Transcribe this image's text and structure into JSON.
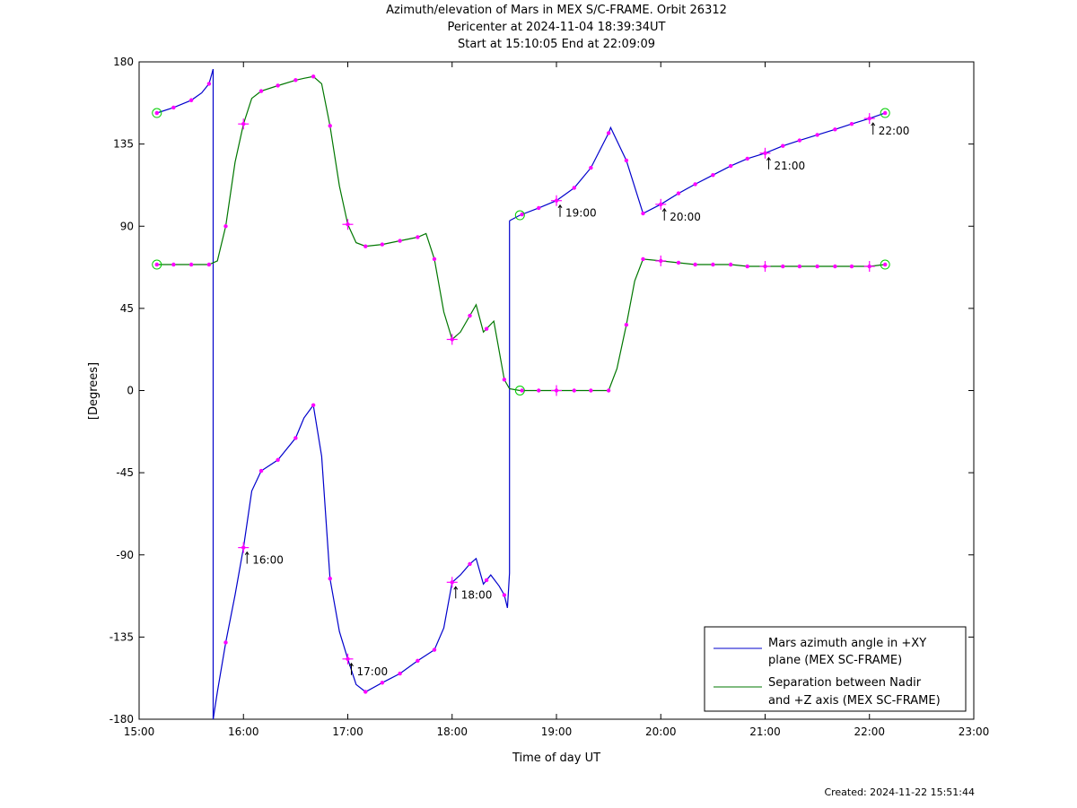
{
  "title": {
    "line1": "Azimuth/elevation of Mars in MEX S/C-FRAME.  Orbit 26312",
    "line2": "Pericenter at 2024-11-04 18:39:34UT",
    "line3": "Start at 15:10:05 End at 22:09:09"
  },
  "created": "Created: 2024-11-22 15:51:44",
  "colors": {
    "azimuth": "#0000cc",
    "separation": "#007700",
    "markers": "#ff00ff",
    "endpoints": "#00cc00"
  },
  "chart_data": {
    "type": "line",
    "xlabel": "Time of day UT",
    "ylabel": "[Degrees]",
    "xlim": [
      15.0,
      23.0
    ],
    "ylim": [
      -180,
      180
    ],
    "xticks": [
      15,
      16,
      17,
      18,
      19,
      20,
      21,
      22,
      23
    ],
    "xtick_labels": [
      "15:00",
      "16:00",
      "17:00",
      "18:00",
      "19:00",
      "20:00",
      "21:00",
      "22:00",
      "23:00"
    ],
    "yticks": [
      180,
      135,
      90,
      45,
      0,
      -45,
      -90,
      -135,
      -180
    ],
    "ytick_labels": [
      "180",
      "135",
      "90",
      "45",
      "0",
      "-45",
      "-90",
      "-135",
      "-180"
    ],
    "series": [
      {
        "name": "Mars azimuth angle in +XY plane (MEX SC-FRAME)",
        "legend_lines": [
          "Mars azimuth angle in +XY",
          "plane (MEX SC-FRAME)"
        ],
        "segments": [
          [
            [
              15.17,
              152
            ],
            [
              15.33,
              155
            ],
            [
              15.5,
              159
            ],
            [
              15.6,
              163
            ],
            [
              15.67,
              168
            ],
            [
              15.71,
              176
            ]
          ],
          [
            [
              15.71,
              176
            ],
            [
              15.71,
              -180
            ]
          ],
          [
            [
              15.71,
              -180
            ],
            [
              15.75,
              -165
            ],
            [
              15.83,
              -138
            ],
            [
              15.92,
              -112
            ],
            [
              16.0,
              -86
            ],
            [
              16.08,
              -55
            ],
            [
              16.17,
              -44
            ],
            [
              16.33,
              -38
            ],
            [
              16.5,
              -26
            ],
            [
              16.58,
              -15
            ],
            [
              16.67,
              -8
            ],
            [
              16.75,
              -36
            ],
            [
              16.83,
              -103
            ],
            [
              16.92,
              -132
            ],
            [
              17.0,
              -147
            ],
            [
              17.08,
              -161
            ],
            [
              17.17,
              -165
            ],
            [
              17.33,
              -160
            ],
            [
              17.5,
              -155
            ],
            [
              17.67,
              -148
            ],
            [
              17.83,
              -142
            ],
            [
              17.92,
              -130
            ],
            [
              18.0,
              -105
            ],
            [
              18.08,
              -101
            ],
            [
              18.17,
              -95
            ],
            [
              18.23,
              -92
            ],
            [
              18.3,
              -106
            ],
            [
              18.37,
              -101
            ],
            [
              18.45,
              -107
            ],
            [
              18.5,
              -112
            ],
            [
              18.53,
              -119
            ]
          ],
          [
            [
              18.53,
              -119
            ],
            [
              18.55,
              -100
            ],
            [
              18.55,
              93
            ]
          ],
          [
            [
              18.55,
              93
            ],
            [
              18.65,
              96
            ],
            [
              18.83,
              100
            ],
            [
              19.0,
              104
            ],
            [
              19.17,
              111
            ],
            [
              19.33,
              122
            ],
            [
              19.5,
              141
            ],
            [
              19.52,
              144
            ],
            [
              19.67,
              126
            ],
            [
              19.83,
              97
            ],
            [
              20.0,
              102
            ],
            [
              20.17,
              108
            ],
            [
              20.33,
              113
            ],
            [
              20.5,
              118
            ],
            [
              20.67,
              123
            ],
            [
              20.83,
              127
            ],
            [
              21.0,
              130
            ],
            [
              21.17,
              134
            ],
            [
              21.33,
              137
            ],
            [
              21.5,
              140
            ],
            [
              21.67,
              143
            ],
            [
              21.83,
              146
            ],
            [
              22.0,
              149
            ],
            [
              22.15,
              152
            ]
          ]
        ],
        "markers_x": [
          15.17,
          15.33,
          15.5,
          15.67,
          15.83,
          16.0,
          16.17,
          16.33,
          16.5,
          16.67,
          16.83,
          17.0,
          17.17,
          17.33,
          17.5,
          17.67,
          17.83,
          18.0,
          18.17,
          18.33,
          18.5,
          18.67,
          18.83,
          19.0,
          19.17,
          19.33,
          19.5,
          19.67,
          19.83,
          20.0,
          20.17,
          20.33,
          20.5,
          20.67,
          20.83,
          21.0,
          21.17,
          21.33,
          21.5,
          21.67,
          21.83,
          22.0,
          22.15
        ],
        "endpoints": [
          [
            15.17,
            152
          ],
          [
            22.15,
            152
          ],
          [
            18.65,
            96
          ]
        ]
      },
      {
        "name": "Separation between Nadir and +Z axis (MEX SC-FRAME)",
        "legend_lines": [
          "Separation between Nadir",
          "and +Z axis (MEX SC-FRAME)"
        ],
        "segments": [
          [
            [
              15.17,
              69
            ],
            [
              15.33,
              69
            ],
            [
              15.5,
              69
            ],
            [
              15.67,
              69
            ],
            [
              15.75,
              71
            ],
            [
              15.83,
              90
            ],
            [
              15.92,
              125
            ],
            [
              16.0,
              146
            ],
            [
              16.08,
              160
            ],
            [
              16.17,
              164
            ],
            [
              16.33,
              167
            ],
            [
              16.5,
              170
            ],
            [
              16.58,
              171
            ],
            [
              16.67,
              172
            ],
            [
              16.75,
              168
            ],
            [
              16.83,
              145
            ],
            [
              16.92,
              112
            ],
            [
              17.0,
              91
            ],
            [
              17.08,
              81
            ],
            [
              17.17,
              79
            ],
            [
              17.33,
              80
            ],
            [
              17.5,
              82
            ],
            [
              17.67,
              84
            ],
            [
              17.75,
              86
            ],
            [
              17.83,
              72
            ],
            [
              17.92,
              43
            ],
            [
              18.0,
              28
            ],
            [
              18.08,
              32
            ],
            [
              18.17,
              41
            ],
            [
              18.23,
              47
            ],
            [
              18.3,
              32
            ],
            [
              18.4,
              38
            ],
            [
              18.5,
              6
            ],
            [
              18.55,
              1
            ],
            [
              18.65,
              0
            ],
            [
              18.83,
              0
            ],
            [
              19.0,
              0
            ],
            [
              19.17,
              0
            ],
            [
              19.33,
              0
            ],
            [
              19.5,
              0
            ],
            [
              19.58,
              12
            ],
            [
              19.67,
              36
            ],
            [
              19.75,
              60
            ],
            [
              19.83,
              72
            ],
            [
              20.0,
              71
            ],
            [
              20.17,
              70
            ],
            [
              20.33,
              69
            ],
            [
              20.5,
              69
            ],
            [
              20.67,
              69
            ],
            [
              20.83,
              68
            ],
            [
              21.0,
              68
            ],
            [
              21.17,
              68
            ],
            [
              21.33,
              68
            ],
            [
              21.5,
              68
            ],
            [
              21.67,
              68
            ],
            [
              21.83,
              68
            ],
            [
              22.0,
              68
            ],
            [
              22.15,
              69
            ]
          ]
        ],
        "markers_x": [
          15.17,
          15.33,
          15.5,
          15.67,
          15.83,
          16.0,
          16.17,
          16.33,
          16.5,
          16.67,
          16.83,
          17.0,
          17.17,
          17.33,
          17.5,
          17.67,
          17.83,
          18.0,
          18.17,
          18.33,
          18.5,
          18.67,
          18.83,
          19.0,
          19.17,
          19.33,
          19.5,
          19.67,
          19.83,
          20.0,
          20.17,
          20.33,
          20.5,
          20.67,
          20.83,
          21.0,
          21.17,
          21.33,
          21.5,
          21.67,
          21.83,
          22.0,
          22.15
        ],
        "endpoints": [
          [
            15.17,
            69
          ],
          [
            22.15,
            69
          ],
          [
            18.65,
            0
          ]
        ]
      }
    ],
    "hour_annotations": [
      {
        "label": "16:00",
        "x": 16.0,
        "y": -86
      },
      {
        "label": "17:00",
        "x": 17.0,
        "y": -147
      },
      {
        "label": "18:00",
        "x": 18.0,
        "y": -105
      },
      {
        "label": "19:00",
        "x": 19.0,
        "y": 104
      },
      {
        "label": "20:00",
        "x": 20.0,
        "y": 102
      },
      {
        "label": "21:00",
        "x": 21.0,
        "y": 130
      },
      {
        "label": "22:00",
        "x": 22.0,
        "y": 149
      }
    ],
    "sep_hour_crosses": [
      [
        16.0,
        146
      ],
      [
        17.0,
        91
      ],
      [
        18.0,
        28
      ],
      [
        19.0,
        0
      ],
      [
        20.0,
        71
      ],
      [
        21.0,
        68
      ],
      [
        22.0,
        68
      ]
    ],
    "legend_position": "bottom-right",
    "grid": false
  }
}
